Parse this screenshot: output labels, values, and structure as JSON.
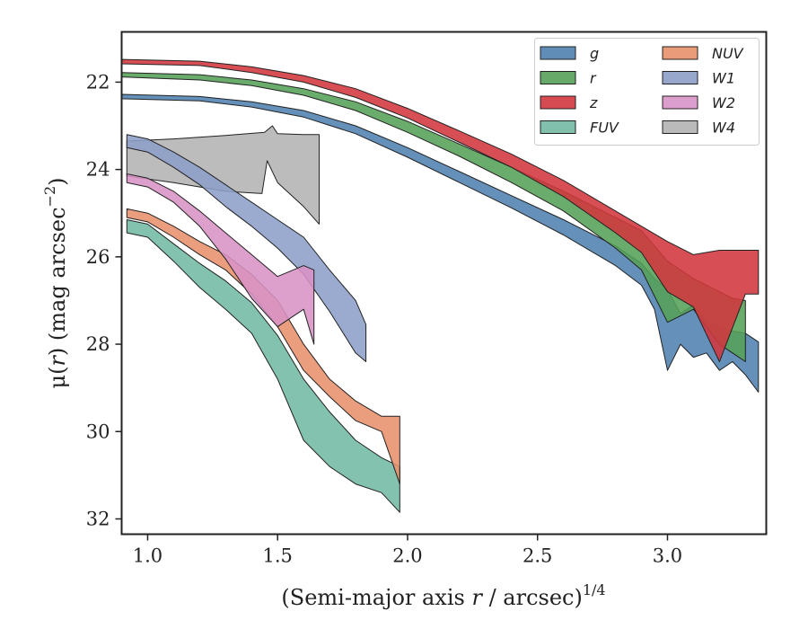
{
  "chart_data": {
    "type": "area",
    "title": "",
    "xlabel": "(Semi-major axis r / arcsec)1/4",
    "xlabel_parts": {
      "prefix": "(Semi-major axis ",
      "var": "r",
      "mid": " / arcsec)",
      "sup": "1/4"
    },
    "ylabel": "μ(r) (mag arcsec−2)",
    "ylabel_parts": {
      "mu": "μ(",
      "var": "r",
      "mid": ") (mag arcsec",
      "sup": "−2",
      "end": ")"
    },
    "xlim": [
      0.9,
      3.38
    ],
    "ylim": [
      32.35,
      20.85
    ],
    "y_inverted": true,
    "xticks": [
      1.0,
      1.5,
      2.0,
      2.5,
      3.0
    ],
    "xtick_labels": [
      "1.0",
      "1.5",
      "2.0",
      "2.5",
      "3.0"
    ],
    "yticks": [
      22,
      24,
      26,
      28,
      30,
      32
    ],
    "ytick_labels": [
      "22",
      "24",
      "26",
      "28",
      "30",
      "32"
    ],
    "grid": false,
    "legend_position": "top-right",
    "legend_columns": 2,
    "series": [
      {
        "name": "g",
        "color": "#4f81b0",
        "upper": [
          [
            0.9,
            22.28
          ],
          [
            1.2,
            22.33
          ],
          [
            1.4,
            22.45
          ],
          [
            1.6,
            22.65
          ],
          [
            1.8,
            23.0
          ],
          [
            2.0,
            23.5
          ],
          [
            2.2,
            24.05
          ],
          [
            2.4,
            24.6
          ],
          [
            2.6,
            25.15
          ],
          [
            2.8,
            25.75
          ],
          [
            2.9,
            26.15
          ],
          [
            2.95,
            26.5
          ],
          [
            3.0,
            26.75
          ],
          [
            3.05,
            27.3
          ],
          [
            3.1,
            27.1
          ],
          [
            3.15,
            27.5
          ],
          [
            3.2,
            27.6
          ],
          [
            3.25,
            27.7
          ],
          [
            3.3,
            27.75
          ],
          [
            3.35,
            27.95
          ]
        ],
        "lower": [
          [
            0.9,
            22.38
          ],
          [
            1.2,
            22.43
          ],
          [
            1.4,
            22.57
          ],
          [
            1.6,
            22.8
          ],
          [
            1.8,
            23.18
          ],
          [
            2.0,
            23.72
          ],
          [
            2.2,
            24.3
          ],
          [
            2.4,
            24.88
          ],
          [
            2.6,
            25.5
          ],
          [
            2.8,
            26.2
          ],
          [
            2.9,
            26.65
          ],
          [
            2.95,
            27.2
          ],
          [
            3.0,
            28.6
          ],
          [
            3.05,
            28.0
          ],
          [
            3.1,
            28.3
          ],
          [
            3.15,
            28.2
          ],
          [
            3.2,
            28.6
          ],
          [
            3.25,
            28.4
          ],
          [
            3.3,
            28.7
          ],
          [
            3.35,
            29.1
          ]
        ]
      },
      {
        "name": "r",
        "color": "#55a058",
        "upper": [
          [
            0.9,
            21.78
          ],
          [
            1.2,
            21.83
          ],
          [
            1.4,
            21.95
          ],
          [
            1.6,
            22.15
          ],
          [
            1.8,
            22.45
          ],
          [
            2.0,
            22.9
          ],
          [
            2.2,
            23.42
          ],
          [
            2.4,
            23.95
          ],
          [
            2.6,
            24.5
          ],
          [
            2.8,
            25.1
          ],
          [
            2.9,
            25.4
          ],
          [
            3.0,
            26.1
          ],
          [
            3.1,
            26.5
          ],
          [
            3.2,
            26.8
          ],
          [
            3.25,
            26.95
          ],
          [
            3.3,
            27.0
          ]
        ],
        "lower": [
          [
            0.9,
            21.88
          ],
          [
            1.2,
            21.95
          ],
          [
            1.4,
            22.08
          ],
          [
            1.6,
            22.3
          ],
          [
            1.8,
            22.65
          ],
          [
            2.0,
            23.15
          ],
          [
            2.2,
            23.7
          ],
          [
            2.4,
            24.3
          ],
          [
            2.6,
            24.95
          ],
          [
            2.8,
            25.8
          ],
          [
            2.9,
            26.3
          ],
          [
            3.0,
            27.5
          ],
          [
            3.1,
            27.2
          ],
          [
            3.2,
            28.0
          ],
          [
            3.25,
            28.2
          ],
          [
            3.3,
            28.4
          ]
        ]
      },
      {
        "name": "z",
        "color": "#d1373e",
        "upper": [
          [
            0.9,
            21.48
          ],
          [
            1.2,
            21.52
          ],
          [
            1.4,
            21.65
          ],
          [
            1.6,
            21.85
          ],
          [
            1.8,
            22.15
          ],
          [
            2.0,
            22.6
          ],
          [
            2.2,
            23.12
          ],
          [
            2.4,
            23.65
          ],
          [
            2.6,
            24.25
          ],
          [
            2.8,
            24.95
          ],
          [
            2.9,
            25.3
          ],
          [
            3.0,
            25.65
          ],
          [
            3.1,
            25.95
          ],
          [
            3.2,
            25.85
          ],
          [
            3.3,
            25.85
          ],
          [
            3.35,
            25.85
          ]
        ],
        "lower": [
          [
            0.9,
            21.58
          ],
          [
            1.2,
            21.62
          ],
          [
            1.4,
            21.78
          ],
          [
            1.6,
            22.0
          ],
          [
            1.8,
            22.35
          ],
          [
            2.0,
            22.82
          ],
          [
            2.2,
            23.38
          ],
          [
            2.4,
            23.95
          ],
          [
            2.6,
            24.62
          ],
          [
            2.8,
            25.45
          ],
          [
            2.9,
            25.9
          ],
          [
            3.0,
            26.8
          ],
          [
            3.1,
            27.15
          ],
          [
            3.2,
            28.4
          ],
          [
            3.3,
            26.85
          ],
          [
            3.35,
            26.85
          ]
        ]
      },
      {
        "name": "FUV",
        "color": "#72b9a4",
        "upper": [
          [
            0.92,
            25.15
          ],
          [
            1.0,
            25.25
          ],
          [
            1.1,
            25.7
          ],
          [
            1.2,
            26.15
          ],
          [
            1.3,
            26.55
          ],
          [
            1.4,
            27.05
          ],
          [
            1.5,
            27.8
          ],
          [
            1.6,
            28.8
          ],
          [
            1.7,
            29.55
          ],
          [
            1.8,
            30.2
          ],
          [
            1.9,
            30.6
          ],
          [
            1.97,
            30.8
          ]
        ],
        "lower": [
          [
            0.92,
            25.45
          ],
          [
            1.0,
            25.55
          ],
          [
            1.1,
            26.1
          ],
          [
            1.2,
            26.7
          ],
          [
            1.3,
            27.2
          ],
          [
            1.4,
            27.75
          ],
          [
            1.5,
            28.8
          ],
          [
            1.6,
            30.2
          ],
          [
            1.7,
            30.8
          ],
          [
            1.8,
            31.2
          ],
          [
            1.9,
            31.4
          ],
          [
            1.97,
            31.85
          ]
        ]
      },
      {
        "name": "NUV",
        "color": "#e8916c",
        "upper": [
          [
            0.92,
            24.9
          ],
          [
            1.0,
            25.0
          ],
          [
            1.1,
            25.3
          ],
          [
            1.2,
            25.65
          ],
          [
            1.3,
            25.95
          ],
          [
            1.4,
            26.4
          ],
          [
            1.5,
            27.0
          ],
          [
            1.6,
            28.0
          ],
          [
            1.7,
            28.8
          ],
          [
            1.8,
            29.3
          ],
          [
            1.9,
            29.65
          ],
          [
            1.97,
            29.65
          ]
        ],
        "lower": [
          [
            0.92,
            25.1
          ],
          [
            1.0,
            25.2
          ],
          [
            1.1,
            25.55
          ],
          [
            1.2,
            25.95
          ],
          [
            1.3,
            26.3
          ],
          [
            1.4,
            26.85
          ],
          [
            1.5,
            27.6
          ],
          [
            1.6,
            28.6
          ],
          [
            1.7,
            29.2
          ],
          [
            1.8,
            29.75
          ],
          [
            1.9,
            30.0
          ],
          [
            1.97,
            31.2
          ]
        ]
      },
      {
        "name": "W1",
        "color": "#8d9ec8",
        "upper": [
          [
            0.92,
            23.2
          ],
          [
            1.0,
            23.3
          ],
          [
            1.1,
            23.6
          ],
          [
            1.2,
            23.95
          ],
          [
            1.3,
            24.35
          ],
          [
            1.4,
            24.75
          ],
          [
            1.5,
            25.15
          ],
          [
            1.6,
            25.55
          ],
          [
            1.7,
            26.3
          ],
          [
            1.8,
            27.0
          ],
          [
            1.84,
            27.55
          ]
        ],
        "lower": [
          [
            0.92,
            23.5
          ],
          [
            1.0,
            23.6
          ],
          [
            1.1,
            23.95
          ],
          [
            1.2,
            24.35
          ],
          [
            1.3,
            24.85
          ],
          [
            1.4,
            25.3
          ],
          [
            1.5,
            25.8
          ],
          [
            1.6,
            26.4
          ],
          [
            1.7,
            27.25
          ],
          [
            1.8,
            28.2
          ],
          [
            1.84,
            28.4
          ]
        ]
      },
      {
        "name": "W2",
        "color": "#d893c6",
        "upper": [
          [
            0.92,
            24.1
          ],
          [
            1.0,
            24.2
          ],
          [
            1.1,
            24.5
          ],
          [
            1.2,
            24.95
          ],
          [
            1.3,
            25.45
          ],
          [
            1.4,
            25.95
          ],
          [
            1.5,
            26.45
          ],
          [
            1.6,
            26.2
          ],
          [
            1.64,
            26.3
          ]
        ],
        "lower": [
          [
            0.92,
            24.3
          ],
          [
            1.0,
            24.4
          ],
          [
            1.1,
            24.75
          ],
          [
            1.2,
            25.3
          ],
          [
            1.3,
            26.05
          ],
          [
            1.4,
            26.95
          ],
          [
            1.5,
            27.6
          ],
          [
            1.6,
            27.2
          ],
          [
            1.64,
            28.0
          ]
        ]
      },
      {
        "name": "W4",
        "color": "#b3b3b3",
        "upper": [
          [
            0.92,
            23.35
          ],
          [
            1.1,
            23.3
          ],
          [
            1.3,
            23.22
          ],
          [
            1.45,
            23.15
          ],
          [
            1.48,
            23.0
          ],
          [
            1.5,
            23.18
          ],
          [
            1.6,
            23.2
          ],
          [
            1.66,
            23.2
          ]
        ],
        "lower": [
          [
            0.92,
            24.15
          ],
          [
            1.1,
            24.3
          ],
          [
            1.3,
            24.5
          ],
          [
            1.44,
            24.55
          ],
          [
            1.46,
            23.8
          ],
          [
            1.5,
            24.3
          ],
          [
            1.6,
            24.85
          ],
          [
            1.66,
            25.25
          ]
        ]
      }
    ]
  }
}
